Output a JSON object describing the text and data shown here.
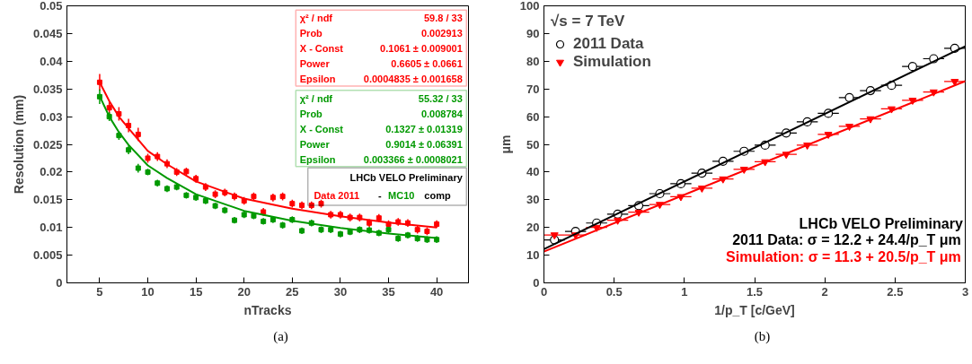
{
  "chart_data": [
    {
      "type": "scatter",
      "xlabel": "nTracks",
      "ylabel": "Resolution (mm)",
      "xlim": [
        1.6,
        43.3
      ],
      "ylim": [
        0,
        0.05
      ],
      "xticks": [
        5,
        10,
        15,
        20,
        25,
        30,
        35,
        40
      ],
      "yticks": [
        0,
        0.005,
        0.01,
        0.015,
        0.02,
        0.025,
        0.03,
        0.035,
        0.04,
        0.045,
        0.05
      ],
      "grid": false,
      "marker": "square",
      "series": [
        {
          "color": "#ff0000",
          "x": [
            5,
            6,
            7,
            8,
            9,
            10,
            11,
            12,
            13,
            14,
            15,
            16,
            17,
            18,
            19,
            20,
            21,
            22,
            23,
            24,
            25,
            26,
            27,
            28,
            29,
            30,
            31,
            32,
            33,
            34,
            35,
            36,
            37,
            38,
            39,
            40
          ],
          "values": [
            0.0362,
            0.0316,
            0.0305,
            0.0284,
            0.0268,
            0.0225,
            0.0228,
            0.0215,
            0.02,
            0.0201,
            0.0188,
            0.0173,
            0.016,
            0.0163,
            0.0156,
            0.0148,
            0.0156,
            0.0128,
            0.0154,
            0.0156,
            0.0143,
            0.014,
            0.014,
            0.0143,
            0.0123,
            0.0123,
            0.0118,
            0.0118,
            0.0108,
            0.0117,
            0.0106,
            0.011,
            0.0108,
            0.0096,
            0.0093,
            0.0106
          ],
          "errors": [
            0.0015,
            0.0012,
            0.0012,
            0.0012,
            0.0012,
            0.0008,
            0.0008,
            0.0008,
            0.0007,
            0.0007,
            0.0007,
            0.0007,
            0.0007,
            0.0007,
            0.0007,
            0.0007,
            0.0007,
            0.0007,
            0.0007,
            0.0007,
            0.0007,
            0.0007,
            0.0007,
            0.0007,
            0.0007,
            0.0007,
            0.0007,
            0.0007,
            0.0007,
            0.0007,
            0.0007,
            0.0007,
            0.0007,
            0.0007,
            0.0007,
            0.0007
          ]
        },
        {
          "color": "#009900",
          "x": [
            5,
            6,
            7,
            8,
            9,
            10,
            11,
            12,
            13,
            14,
            15,
            16,
            17,
            18,
            19,
            20,
            21,
            22,
            23,
            24,
            25,
            26,
            27,
            28,
            29,
            30,
            31,
            32,
            33,
            34,
            35,
            36,
            37,
            38,
            39,
            40
          ],
          "values": [
            0.0336,
            0.03,
            0.0266,
            0.024,
            0.0207,
            0.02,
            0.018,
            0.017,
            0.0173,
            0.0158,
            0.0154,
            0.0148,
            0.0139,
            0.0131,
            0.0113,
            0.0123,
            0.0121,
            0.0111,
            0.0114,
            0.0104,
            0.0114,
            0.0094,
            0.0108,
            0.0096,
            0.0096,
            0.0088,
            0.0092,
            0.0096,
            0.0095,
            0.009,
            0.0096,
            0.008,
            0.0086,
            0.008,
            0.0078,
            0.0078
          ],
          "errors": [
            0.0013,
            0.0008,
            0.0008,
            0.0008,
            0.0008,
            0.0006,
            0.0006,
            0.0006,
            0.0006,
            0.0006,
            0.0006,
            0.0006,
            0.0006,
            0.0006,
            0.0006,
            0.0006,
            0.0006,
            0.0006,
            0.0006,
            0.0006,
            0.0006,
            0.0006,
            0.0006,
            0.0006,
            0.0006,
            0.0006,
            0.0006,
            0.0006,
            0.0006,
            0.0006,
            0.0006,
            0.0006,
            0.0006,
            0.0006,
            0.0006,
            0.0006
          ]
        },
        {
          "type": "line",
          "marker": "none",
          "color": "#ff0000",
          "x": [
            5,
            6,
            7,
            8,
            10,
            12,
            15,
            20,
            25,
            30,
            35,
            40
          ],
          "values": [
            0.0362,
            0.0328,
            0.03,
            0.0279,
            0.0238,
            0.0214,
            0.0183,
            0.0152,
            0.0134,
            0.012,
            0.0109,
            0.01
          ]
        },
        {
          "type": "line",
          "marker": "none",
          "color": "#009900",
          "x": [
            5,
            6,
            7,
            8,
            10,
            12,
            15,
            20,
            25,
            30,
            35,
            40
          ],
          "values": [
            0.0337,
            0.03,
            0.0272,
            0.0249,
            0.0212,
            0.0189,
            0.016,
            0.013,
            0.0112,
            0.0099,
            0.0089,
            0.0081
          ]
        }
      ],
      "annotations": [
        "χ² / ndf",
        "59.8 / 33",
        "Prob",
        "0.002913",
        "X - Const",
        "0.1061 ± 0.009001",
        "Power",
        "0.6605 ± 0.0661",
        "Epsilon",
        "0.0004835 ± 0.001658",
        "χ² / ndf",
        "55.32 / 33",
        "Prob",
        "0.008784",
        "X - Const",
        "0.1327 ± 0.01319",
        "Power",
        "0.9014 ± 0.06391",
        "Epsilon",
        "0.003366 ± 0.0008021",
        "LHCb VELO Preliminary",
        "Data 2011",
        "-",
        "MC10",
        "comp",
        "(a)"
      ]
    },
    {
      "type": "scatter",
      "xlabel": "1/p_T [c/GeV]",
      "ylabel": "μm",
      "xlim": [
        0,
        3
      ],
      "ylim": [
        0,
        100
      ],
      "xticks": [
        0,
        0.5,
        1,
        1.5,
        2,
        2.5,
        3
      ],
      "yticks": [
        0,
        10,
        20,
        30,
        40,
        50,
        60,
        70,
        80,
        90,
        100
      ],
      "grid": false,
      "legend": "top left",
      "legend_title": "√s = 7 TeV",
      "series": [
        {
          "name": "2011 Data",
          "color": "#000000",
          "marker": "circle",
          "x": [
            0.075,
            0.225,
            0.375,
            0.525,
            0.675,
            0.825,
            0.975,
            1.125,
            1.275,
            1.425,
            1.575,
            1.725,
            1.875,
            2.025,
            2.175,
            2.325,
            2.475,
            2.625,
            2.775,
            2.925
          ],
          "values": [
            15.5,
            18.6,
            21.6,
            24.8,
            27.9,
            32.2,
            35.8,
            39.6,
            43.9,
            47.5,
            49.7,
            54.1,
            58.1,
            61.2,
            66.9,
            69.4,
            71.3,
            78.1,
            80.9,
            84.7
          ],
          "xerrors": [
            0.075,
            0.075,
            0.075,
            0.075,
            0.075,
            0.075,
            0.075,
            0.075,
            0.075,
            0.075,
            0.075,
            0.075,
            0.075,
            0.075,
            0.075,
            0.075,
            0.075,
            0.075,
            0.075,
            0.075
          ]
        },
        {
          "name": "Simulation",
          "color": "#ff0000",
          "marker": "triangle",
          "x": [
            0.075,
            0.225,
            0.375,
            0.525,
            0.675,
            0.825,
            0.975,
            1.125,
            1.275,
            1.425,
            1.575,
            1.725,
            1.875,
            2.025,
            2.175,
            2.325,
            2.475,
            2.625,
            2.775,
            2.925
          ],
          "values": [
            17.3,
            17.3,
            20.0,
            22.6,
            25.5,
            28.3,
            31.1,
            34.2,
            37.5,
            41.0,
            43.7,
            46.4,
            49.7,
            53.6,
            56.5,
            59.2,
            62.8,
            65.9,
            68.9,
            72.7
          ],
          "xerrors": [
            0.075,
            0.075,
            0.075,
            0.075,
            0.075,
            0.075,
            0.075,
            0.075,
            0.075,
            0.075,
            0.075,
            0.075,
            0.075,
            0.075,
            0.075,
            0.075,
            0.075,
            0.075,
            0.075,
            0.075
          ]
        },
        {
          "type": "line",
          "color": "#000000",
          "x": [
            0,
            3
          ],
          "values": [
            12.2,
            85.4
          ]
        },
        {
          "type": "line",
          "color": "#ff0000",
          "x": [
            0,
            3
          ],
          "values": [
            11.3,
            72.8
          ]
        }
      ],
      "annotations": [
        "LHCb VELO Preliminary",
        "2011 Data: σ = 12.2 + 24.4/p_T μm",
        "Simulation: σ = 11.3 + 20.5/p_T μm",
        "(b)"
      ]
    }
  ]
}
